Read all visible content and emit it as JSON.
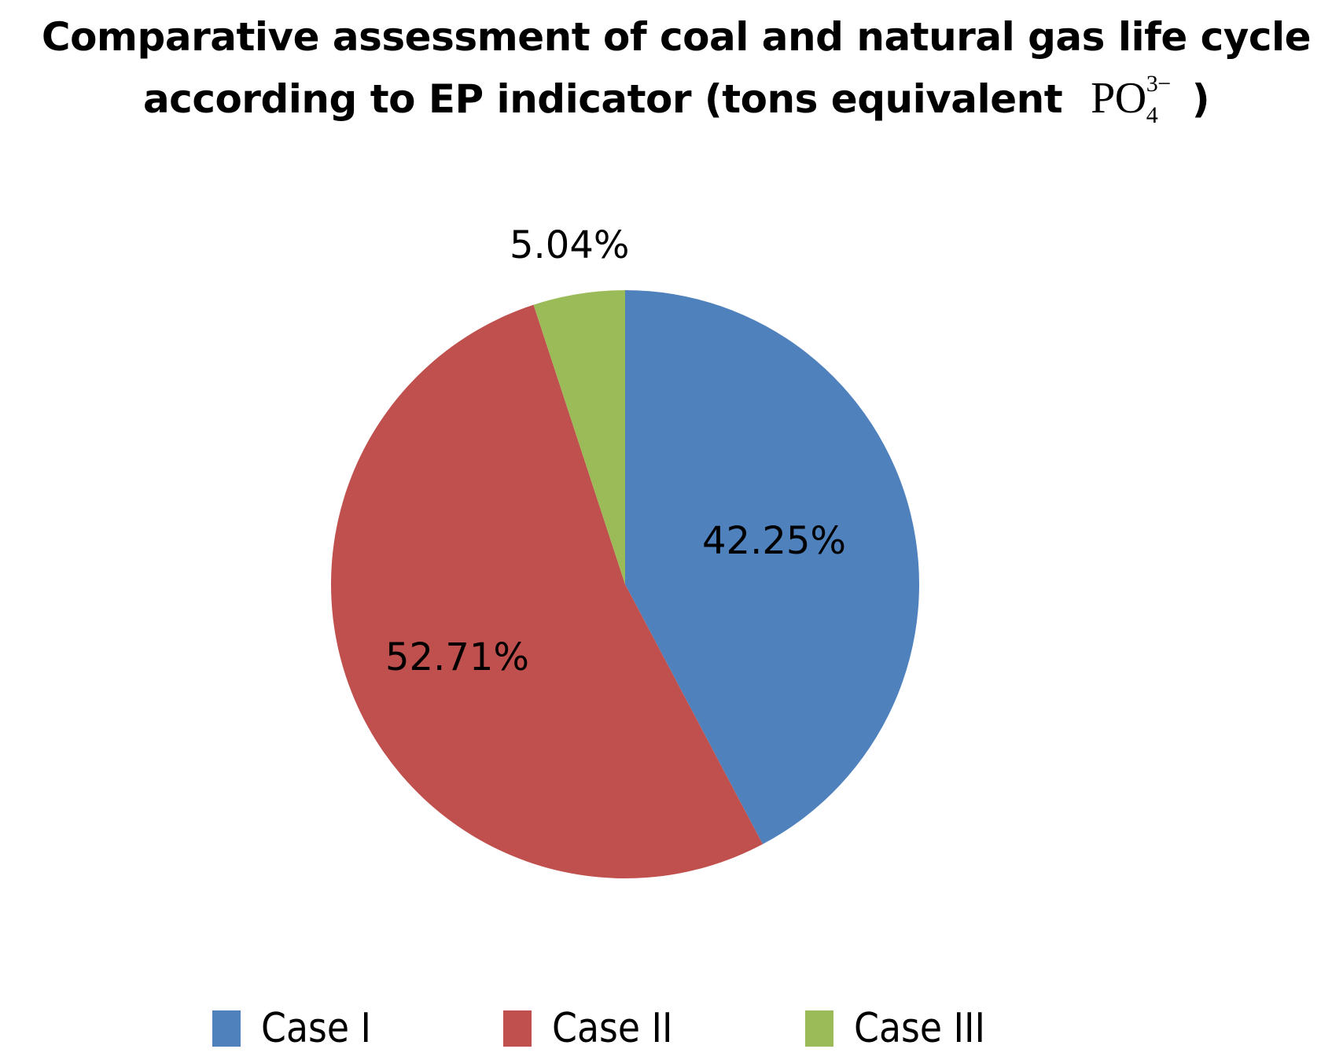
{
  "chart_data": {
    "type": "pie",
    "title": "Comparative assessment of coal and natural gas life cycle according to EP indicator (tons equivalent PO4 3-)",
    "title_line1": "Comparative assessment of coal and natural gas life cycle",
    "title_line2": "according to EP indicator (tons equivalent",
    "title_chem": {
      "base": "PO",
      "sup": "3−",
      "sub": "4",
      "close": ")"
    },
    "categories": [
      "Case I",
      "Case II",
      "Case III"
    ],
    "values": [
      42.25,
      52.71,
      5.04
    ],
    "labels": [
      "42.25%",
      "52.71%",
      "5.04%"
    ],
    "colors": [
      "#4F81BD",
      "#C0504D",
      "#9BBB59"
    ],
    "legend_position": "bottom",
    "start_angle": "12 o'clock, clockwise"
  },
  "legend": [
    {
      "label": "Case I",
      "color": "#4F81BD"
    },
    {
      "label": "Case II",
      "color": "#C0504D"
    },
    {
      "label": "Case III",
      "color": "#9BBB59"
    }
  ]
}
